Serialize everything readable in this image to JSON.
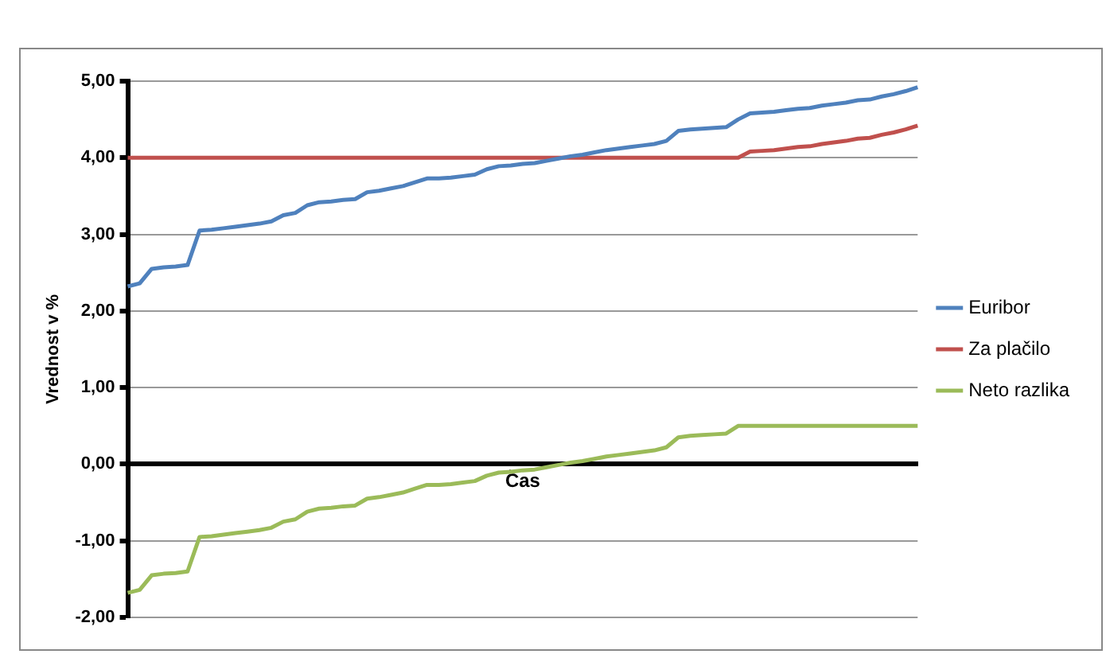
{
  "chart_data": {
    "type": "line",
    "xlabel": "Čas",
    "ylabel": "Vrednost v %",
    "categories": [
      null,
      null,
      null,
      null,
      null,
      null,
      null,
      null,
      null,
      null,
      null,
      null,
      null,
      null,
      null,
      null,
      null,
      null,
      null,
      null,
      null,
      null,
      null,
      null,
      null,
      null,
      null,
      null,
      null,
      null,
      null,
      null,
      null,
      null,
      null,
      null,
      null,
      null,
      null,
      null,
      null,
      null,
      null,
      null,
      null,
      null,
      null,
      null,
      null,
      null,
      null,
      null,
      null,
      null,
      null,
      null,
      null,
      null,
      null,
      null,
      null,
      null,
      null,
      null,
      null,
      null,
      null
    ],
    "series": [
      {
        "name": "Euribor",
        "color": "#4f81bd",
        "values": [
          2.32,
          2.36,
          2.55,
          2.57,
          2.58,
          2.6,
          3.05,
          3.06,
          3.08,
          3.1,
          3.12,
          3.14,
          3.17,
          3.25,
          3.28,
          3.38,
          3.42,
          3.43,
          3.45,
          3.46,
          3.55,
          3.57,
          3.6,
          3.63,
          3.68,
          3.73,
          3.73,
          3.74,
          3.76,
          3.78,
          3.85,
          3.89,
          3.9,
          3.92,
          3.93,
          3.96,
          3.99,
          4.02,
          4.04,
          4.07,
          4.1,
          4.12,
          4.14,
          4.16,
          4.18,
          4.22,
          4.35,
          4.37,
          4.38,
          4.39,
          4.4,
          4.5,
          4.58,
          4.59,
          4.6,
          4.62,
          4.64,
          4.65,
          4.68,
          4.7,
          4.72,
          4.75,
          4.76,
          4.8,
          4.83,
          4.87,
          4.92
        ]
      },
      {
        "name": "Za plačilo",
        "color": "#c0504d",
        "values": [
          4,
          4,
          4,
          4,
          4,
          4,
          4,
          4,
          4,
          4,
          4,
          4,
          4,
          4,
          4,
          4,
          4,
          4,
          4,
          4,
          4,
          4,
          4,
          4,
          4,
          4,
          4,
          4,
          4,
          4,
          4,
          4,
          4,
          4,
          4,
          4,
          4,
          4,
          4,
          4,
          4,
          4,
          4,
          4,
          4,
          4,
          4,
          4,
          4,
          4,
          4,
          4,
          4.08,
          4.09,
          4.1,
          4.12,
          4.14,
          4.15,
          4.18,
          4.2,
          4.22,
          4.25,
          4.26,
          4.3,
          4.33,
          4.37,
          4.42
        ]
      },
      {
        "name": "Neto razlika",
        "color": "#9bbb59",
        "values": [
          -1.68,
          -1.64,
          -1.45,
          -1.43,
          -1.42,
          -1.4,
          -0.95,
          -0.94,
          -0.92,
          -0.9,
          -0.88,
          -0.86,
          -0.83,
          -0.75,
          -0.72,
          -0.62,
          -0.58,
          -0.57,
          -0.55,
          -0.54,
          -0.45,
          -0.43,
          -0.4,
          -0.37,
          -0.32,
          -0.27,
          -0.27,
          -0.26,
          -0.24,
          -0.22,
          -0.15,
          -0.11,
          -0.1,
          -0.08,
          -0.07,
          -0.04,
          -0.01,
          0.02,
          0.04,
          0.07,
          0.1,
          0.12,
          0.14,
          0.16,
          0.18,
          0.22,
          0.35,
          0.37,
          0.38,
          0.39,
          0.4,
          0.5,
          0.5,
          0.5,
          0.5,
          0.5,
          0.5,
          0.5,
          0.5,
          0.5,
          0.5,
          0.5,
          0.5,
          0.5,
          0.5,
          0.5,
          0.5
        ]
      }
    ],
    "ylim": [
      -2,
      5
    ],
    "yticks": [
      {
        "value": -2,
        "label": "-2,00"
      },
      {
        "value": -1,
        "label": "-1,00"
      },
      {
        "value": 0,
        "label": "0,00"
      },
      {
        "value": 1,
        "label": "1,00"
      },
      {
        "value": 2,
        "label": "2,00"
      },
      {
        "value": 3,
        "label": "3,00"
      },
      {
        "value": 4,
        "label": "4,00"
      },
      {
        "value": 5,
        "label": "5,00"
      }
    ],
    "grid": "y",
    "legend": "right",
    "tick_labels": "y",
    "marker": "none"
  }
}
